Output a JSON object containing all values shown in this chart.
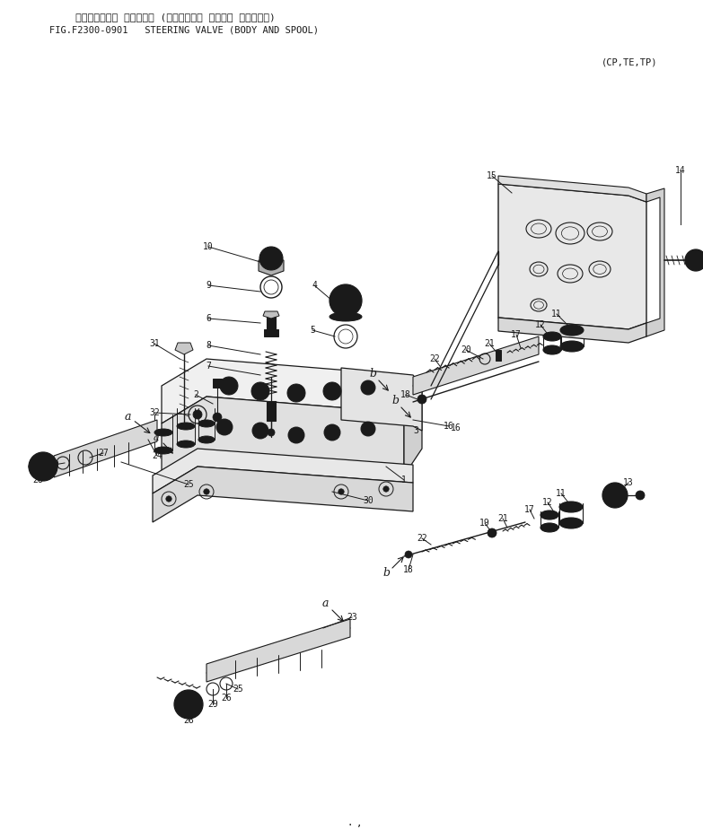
{
  "title_japanese": "ステアリング゙ バルブ (ボ゙ディー オヨビ スプ゚ール)",
  "title_english": "FIG.F2300-0901   STEERING VALVE (BODY AND SPOOL)",
  "subtitle": "(CP,TE,TP)",
  "bg_color": "#ffffff",
  "text_color": "#1a1a1a",
  "line_color": "#1a1a1a"
}
